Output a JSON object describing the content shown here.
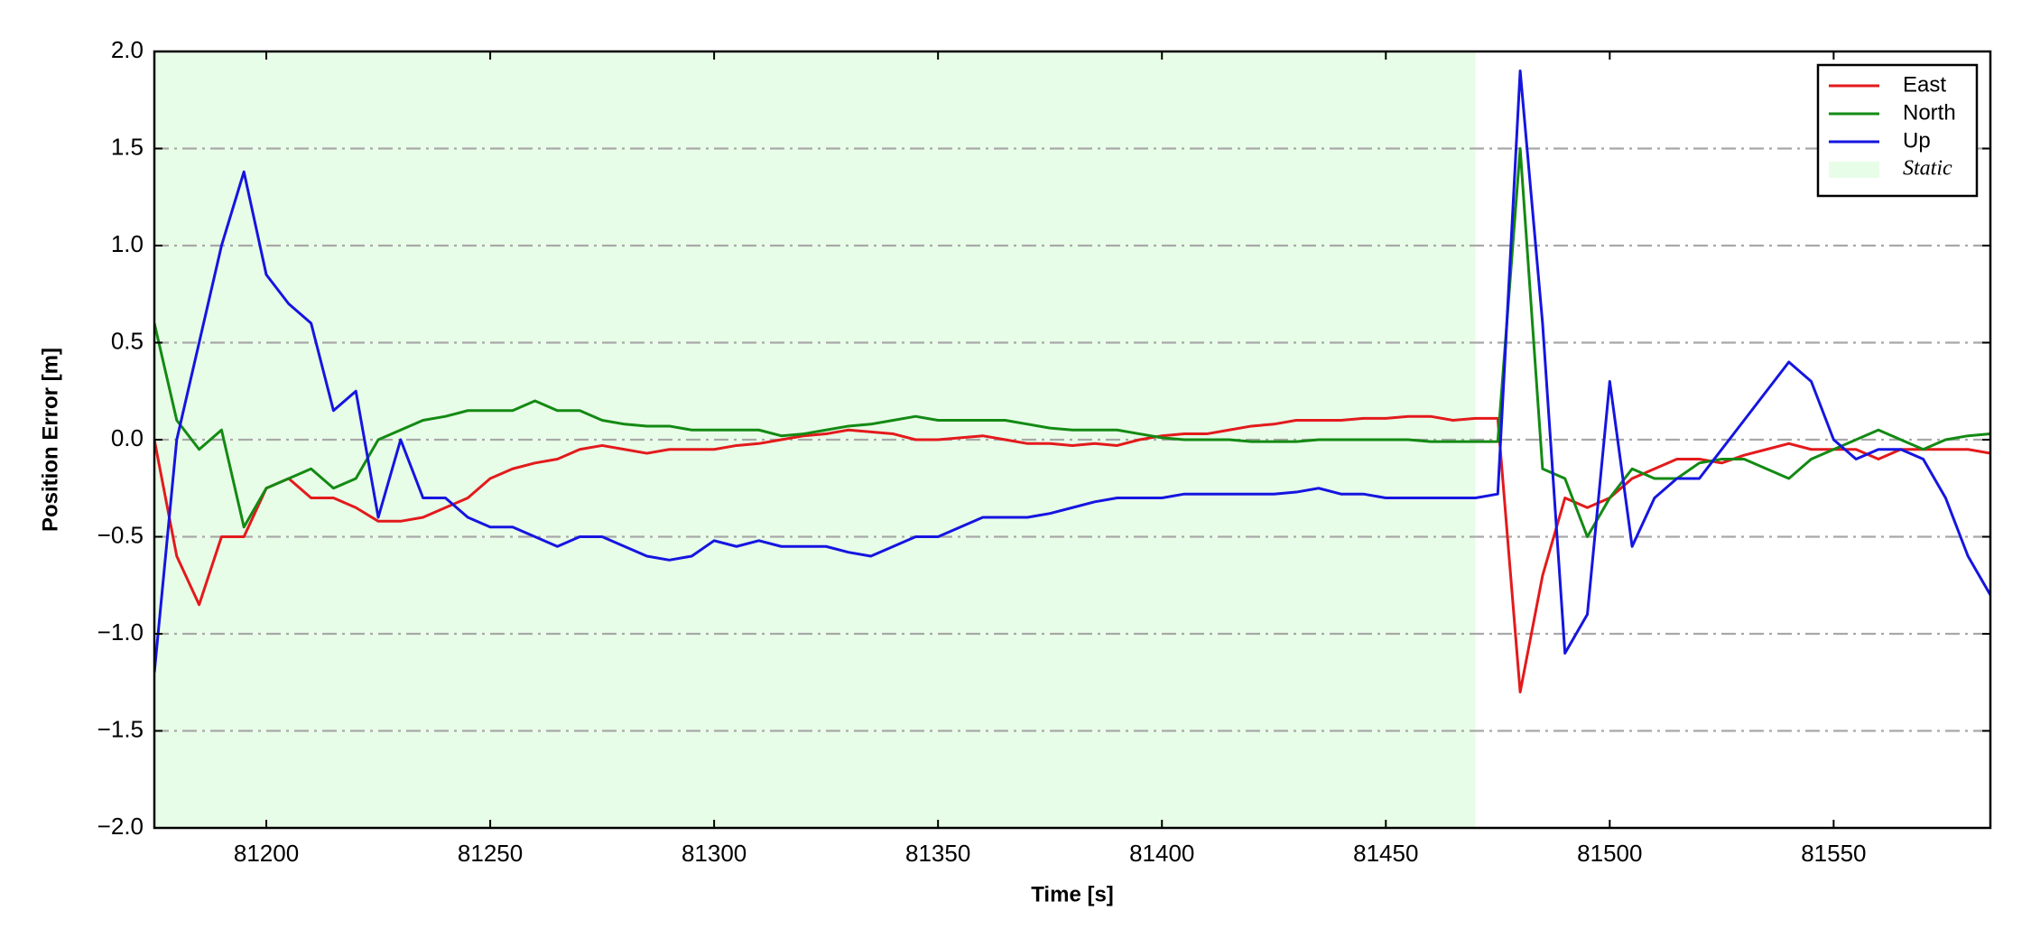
{
  "chart_data": {
    "type": "line",
    "xlabel": "Time [s]",
    "ylabel": "Position Error [m]",
    "x": [
      81175,
      81180,
      81185,
      81190,
      81195,
      81200,
      81205,
      81210,
      81215,
      81220,
      81225,
      81230,
      81235,
      81240,
      81245,
      81250,
      81255,
      81260,
      81265,
      81270,
      81275,
      81280,
      81285,
      81290,
      81295,
      81300,
      81305,
      81310,
      81315,
      81320,
      81325,
      81330,
      81335,
      81340,
      81345,
      81350,
      81355,
      81360,
      81365,
      81370,
      81375,
      81380,
      81385,
      81390,
      81395,
      81400,
      81405,
      81410,
      81415,
      81420,
      81425,
      81430,
      81435,
      81440,
      81445,
      81450,
      81455,
      81460,
      81465,
      81470,
      81475,
      81480,
      81485,
      81490,
      81495,
      81500,
      81505,
      81510,
      81515,
      81520,
      81525,
      81530,
      81535,
      81540,
      81545,
      81550,
      81555,
      81560,
      81565,
      81570,
      81575,
      81580,
      81585
    ],
    "series": [
      {
        "name": "East",
        "color": "#e31a1c",
        "values": [
          0.0,
          -0.6,
          -0.85,
          -0.5,
          -0.5,
          -0.25,
          -0.2,
          -0.3,
          -0.3,
          -0.35,
          -0.42,
          -0.42,
          -0.4,
          -0.35,
          -0.3,
          -0.2,
          -0.15,
          -0.12,
          -0.1,
          -0.05,
          -0.03,
          -0.05,
          -0.07,
          -0.05,
          -0.05,
          -0.05,
          -0.03,
          -0.02,
          0.0,
          0.02,
          0.03,
          0.05,
          0.04,
          0.03,
          0.0,
          0.0,
          0.01,
          0.02,
          0.0,
          -0.02,
          -0.02,
          -0.03,
          -0.02,
          -0.03,
          0.0,
          0.02,
          0.03,
          0.03,
          0.05,
          0.07,
          0.08,
          0.1,
          0.1,
          0.1,
          0.11,
          0.11,
          0.12,
          0.12,
          0.1,
          0.11,
          0.11,
          -1.3,
          -0.7,
          -0.3,
          -0.35,
          -0.3,
          -0.2,
          -0.15,
          -0.1,
          -0.1,
          -0.12,
          -0.08,
          -0.05,
          -0.02,
          -0.05,
          -0.05,
          -0.05,
          -0.1,
          -0.05,
          -0.05,
          -0.05,
          -0.05,
          -0.07
        ]
      },
      {
        "name": "North",
        "color": "#138a13",
        "values": [
          0.6,
          0.1,
          -0.05,
          0.05,
          -0.45,
          -0.25,
          -0.2,
          -0.15,
          -0.25,
          -0.2,
          0.0,
          0.05,
          0.1,
          0.12,
          0.15,
          0.15,
          0.15,
          0.2,
          0.15,
          0.15,
          0.1,
          0.08,
          0.07,
          0.07,
          0.05,
          0.05,
          0.05,
          0.05,
          0.02,
          0.03,
          0.05,
          0.07,
          0.08,
          0.1,
          0.12,
          0.1,
          0.1,
          0.1,
          0.1,
          0.08,
          0.06,
          0.05,
          0.05,
          0.05,
          0.03,
          0.01,
          0.0,
          0.0,
          0.0,
          -0.01,
          -0.01,
          -0.01,
          0.0,
          0.0,
          0.0,
          0.0,
          0.0,
          -0.01,
          -0.01,
          -0.01,
          -0.01,
          1.5,
          -0.15,
          -0.2,
          -0.5,
          -0.3,
          -0.15,
          -0.2,
          -0.2,
          -0.12,
          -0.1,
          -0.1,
          -0.15,
          -0.2,
          -0.1,
          -0.05,
          0.0,
          0.05,
          0.0,
          -0.05,
          0.0,
          0.02,
          0.03
        ]
      },
      {
        "name": "Up",
        "color": "#1515e0",
        "values": [
          -1.2,
          0.0,
          0.5,
          1.0,
          1.38,
          0.85,
          0.7,
          0.6,
          0.15,
          0.25,
          -0.4,
          0.0,
          -0.3,
          -0.3,
          -0.4,
          -0.45,
          -0.45,
          -0.5,
          -0.55,
          -0.5,
          -0.5,
          -0.55,
          -0.6,
          -0.62,
          -0.6,
          -0.52,
          -0.55,
          -0.52,
          -0.55,
          -0.55,
          -0.55,
          -0.58,
          -0.6,
          -0.55,
          -0.5,
          -0.5,
          -0.45,
          -0.4,
          -0.4,
          -0.4,
          -0.38,
          -0.35,
          -0.32,
          -0.3,
          -0.3,
          -0.3,
          -0.28,
          -0.28,
          -0.28,
          -0.28,
          -0.28,
          -0.27,
          -0.25,
          -0.28,
          -0.28,
          -0.3,
          -0.3,
          -0.3,
          -0.3,
          -0.3,
          -0.28,
          1.9,
          0.6,
          -1.1,
          -0.9,
          0.3,
          -0.55,
          -0.3,
          -0.2,
          -0.2,
          -0.05,
          0.1,
          0.25,
          0.4,
          0.3,
          0.0,
          -0.1,
          -0.05,
          -0.05,
          -0.1,
          -0.3,
          -0.6,
          -0.8
        ]
      }
    ],
    "shaded_region": {
      "name": "Static",
      "xrange": [
        81175,
        81470
      ],
      "color": "#e8fde8"
    },
    "xlim": [
      81175,
      81585
    ],
    "xticks": [
      81200,
      81250,
      81300,
      81350,
      81400,
      81450,
      81500,
      81550
    ],
    "ylim": [
      -2,
      2
    ],
    "yticks": [
      {
        "value": -2,
        "label": "−2.0"
      },
      {
        "value": -1.5,
        "label": "−1.5"
      },
      {
        "value": -1,
        "label": "−1.0"
      },
      {
        "value": -0.5,
        "label": "−0.5"
      },
      {
        "value": 0,
        "label": "0.0"
      },
      0.5,
      {
        "value": 1,
        "label": "1.0"
      },
      1.5,
      {
        "value": 2,
        "label": "2.0"
      }
    ],
    "grid": true,
    "legend": "upper right"
  }
}
